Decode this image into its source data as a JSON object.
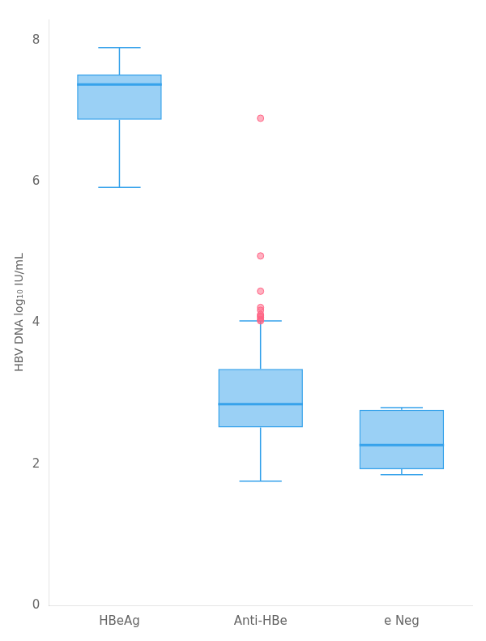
{
  "chart_data": {
    "type": "box",
    "categories": [
      "HBeAg",
      "Anti-HBe",
      "e Neg"
    ],
    "boxes": [
      {
        "median": 7.38,
        "q1": 6.88,
        "q3": 7.52,
        "whisker_low": 5.92,
        "whisker_high": 7.9
      },
      {
        "median": 2.85,
        "q1": 2.52,
        "q3": 3.35,
        "whisker_low": 1.76,
        "whisker_high": 4.03
      },
      {
        "median": 2.27,
        "q1": 1.93,
        "q3": 2.77,
        "whisker_low": 1.85,
        "whisker_high": 2.8
      }
    ],
    "outliers": {
      "category": "Anti-HBe",
      "values": [
        4.03,
        4.05,
        4.08,
        4.1,
        4.12,
        4.18,
        4.22,
        4.45,
        4.95,
        6.9
      ]
    },
    "ylabel": "HBV DNA log₁₀ IU/mL",
    "ylim": [
      0,
      8.3
    ],
    "yticks": [
      0,
      2,
      4,
      6,
      8
    ],
    "grid": false
  }
}
